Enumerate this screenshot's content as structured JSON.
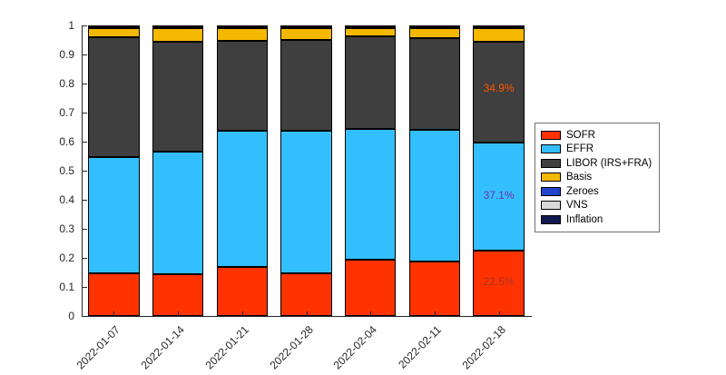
{
  "chart_data": {
    "type": "bar",
    "stacked": true,
    "title": "",
    "xlabel": "",
    "ylabel": "",
    "ylim": [
      0,
      1
    ],
    "yticks": [
      "0",
      "0.1",
      "0.2",
      "0.3",
      "0.4",
      "0.5",
      "0.6",
      "0.7",
      "0.8",
      "0.9",
      "1"
    ],
    "grid": false,
    "legend_position": "right",
    "categories": [
      "2022-01-07",
      "2022-01-14",
      "2022-01-21",
      "2022-01-28",
      "2022-02-04",
      "2022-02-11",
      "2022-02-18"
    ],
    "series": [
      {
        "name": "SOFR",
        "color": "#ff3300",
        "values": [
          0.148,
          0.145,
          0.168,
          0.148,
          0.195,
          0.188,
          0.225
        ]
      },
      {
        "name": "EFFR",
        "color": "#33bfff",
        "values": [
          0.398,
          0.42,
          0.468,
          0.488,
          0.448,
          0.452,
          0.371
        ]
      },
      {
        "name": "LIBOR (IRS+FRA)",
        "color": "#3f3f3f",
        "values": [
          0.412,
          0.378,
          0.312,
          0.315,
          0.318,
          0.315,
          0.349
        ]
      },
      {
        "name": "Basis",
        "color": "#f5b800",
        "values": [
          0.032,
          0.047,
          0.042,
          0.039,
          0.029,
          0.035,
          0.045
        ]
      },
      {
        "name": "Zeroes",
        "color": "#2244cc",
        "values": [
          0.004,
          0.004,
          0.004,
          0.004,
          0.004,
          0.004,
          0.004
        ]
      },
      {
        "name": "VNS",
        "color": "#d9d9d9",
        "values": [
          0.003,
          0.003,
          0.003,
          0.003,
          0.003,
          0.003,
          0.003
        ]
      },
      {
        "name": "Inflation",
        "color": "#111a4f",
        "values": [
          0.003,
          0.003,
          0.003,
          0.003,
          0.003,
          0.003,
          0.003
        ]
      }
    ],
    "annotations": [
      {
        "text": "34.9%",
        "category_index": 6,
        "y": 0.785,
        "color": "#ff5500"
      },
      {
        "text": "37.1%",
        "category_index": 6,
        "y": 0.415,
        "color": "#7030a0"
      },
      {
        "text": "22.5%",
        "category_index": 6,
        "y": 0.12,
        "color": "#a93226"
      }
    ]
  }
}
